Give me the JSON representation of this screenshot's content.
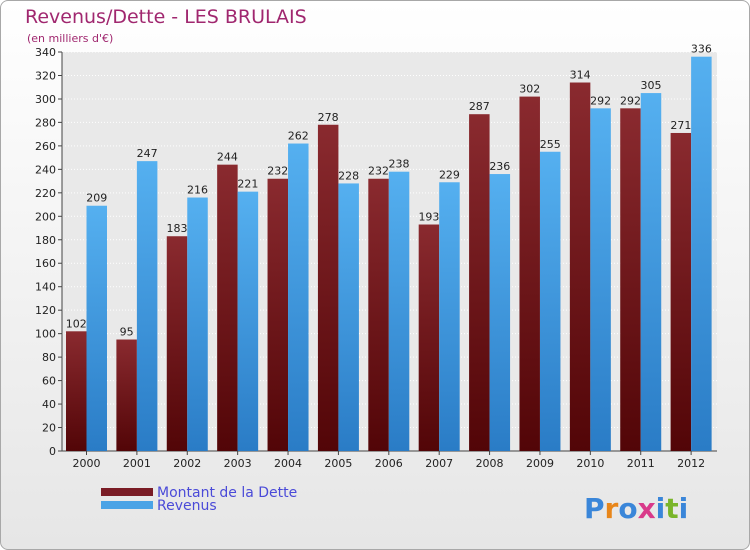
{
  "chart_data": {
    "type": "bar",
    "title": "Revenus/Dette - LES BRULAIS",
    "subtitle": "(en milliers d'€)",
    "categories": [
      "2000",
      "2001",
      "2002",
      "2003",
      "2004",
      "2005",
      "2006",
      "2007",
      "2008",
      "2009",
      "2010",
      "2011",
      "2012"
    ],
    "series": [
      {
        "name": "Montant de la Dette",
        "color": "#7a1c25",
        "values": [
          102,
          95,
          183,
          244,
          232,
          278,
          232,
          193,
          287,
          302,
          314,
          292,
          271
        ]
      },
      {
        "name": "Revenus",
        "color": "#4aa3e6",
        "values": [
          209,
          247,
          216,
          221,
          262,
          228,
          238,
          229,
          236,
          255,
          292,
          305,
          336
        ]
      }
    ],
    "ylim": [
      0,
      340
    ],
    "ytick_step": 20,
    "grid": true,
    "legend": "bottom-left"
  },
  "logo": {
    "letters": [
      "P",
      "r",
      "o",
      "x",
      "i",
      "t",
      "i"
    ],
    "colors": [
      "#3a86d9",
      "#e8861a",
      "#3a86d9",
      "#d93a8a",
      "#3a86d9",
      "#7ab52a",
      "#3a86d9"
    ]
  }
}
